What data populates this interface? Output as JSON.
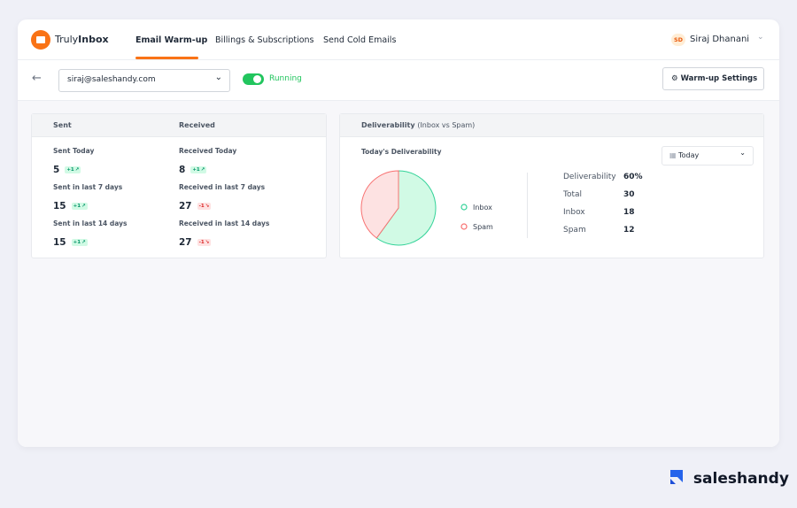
{
  "header": {
    "brand": {
      "light": "Truly",
      "bold": "Inbox"
    },
    "nav": [
      "Email Warm-up",
      "Billings & Subscriptions",
      "Send Cold Emails"
    ],
    "user": {
      "initials": "SD",
      "name": "Siraj Dhanani"
    }
  },
  "toolbar": {
    "email": "siraj@saleshandy.com",
    "status": "Running",
    "settings_button": "Warm-up Settings"
  },
  "stats": {
    "columns": [
      "Sent",
      "Received"
    ],
    "items": [
      {
        "label": "Sent Today",
        "value": 5,
        "change": "+1",
        "trend": "up"
      },
      {
        "label": "Received Today",
        "value": 8,
        "change": "+1",
        "trend": "up"
      },
      {
        "label": "Sent in last 7 days",
        "value": 15,
        "change": "+1",
        "trend": "up"
      },
      {
        "label": "Received in last 7 days",
        "value": 27,
        "change": "-1",
        "trend": "down"
      },
      {
        "label": "Sent in last 14 days",
        "value": 15,
        "change": "+1",
        "trend": "up"
      },
      {
        "label": "Received in last 14 days",
        "value": 27,
        "change": "-1",
        "trend": "down"
      }
    ]
  },
  "deliverability": {
    "title": "Deliverability",
    "subtitle": "(Inbox vs Spam)",
    "period": "Today",
    "summary": [
      [
        "Deliverability",
        "60%"
      ],
      [
        "Total",
        30
      ],
      [
        "Inbox",
        18
      ],
      [
        "Spam",
        12
      ]
    ]
  },
  "chart_data": {
    "type": "pie",
    "title": "Today's Deliverability",
    "categories": [
      "Inbox",
      "Spam"
    ],
    "values": [
      18,
      12
    ],
    "colors": [
      "#34d399",
      "#f87171"
    ],
    "fills": [
      "#d1fae5",
      "#fde2e2"
    ]
  },
  "footer": {
    "logo": "saleshandy"
  }
}
